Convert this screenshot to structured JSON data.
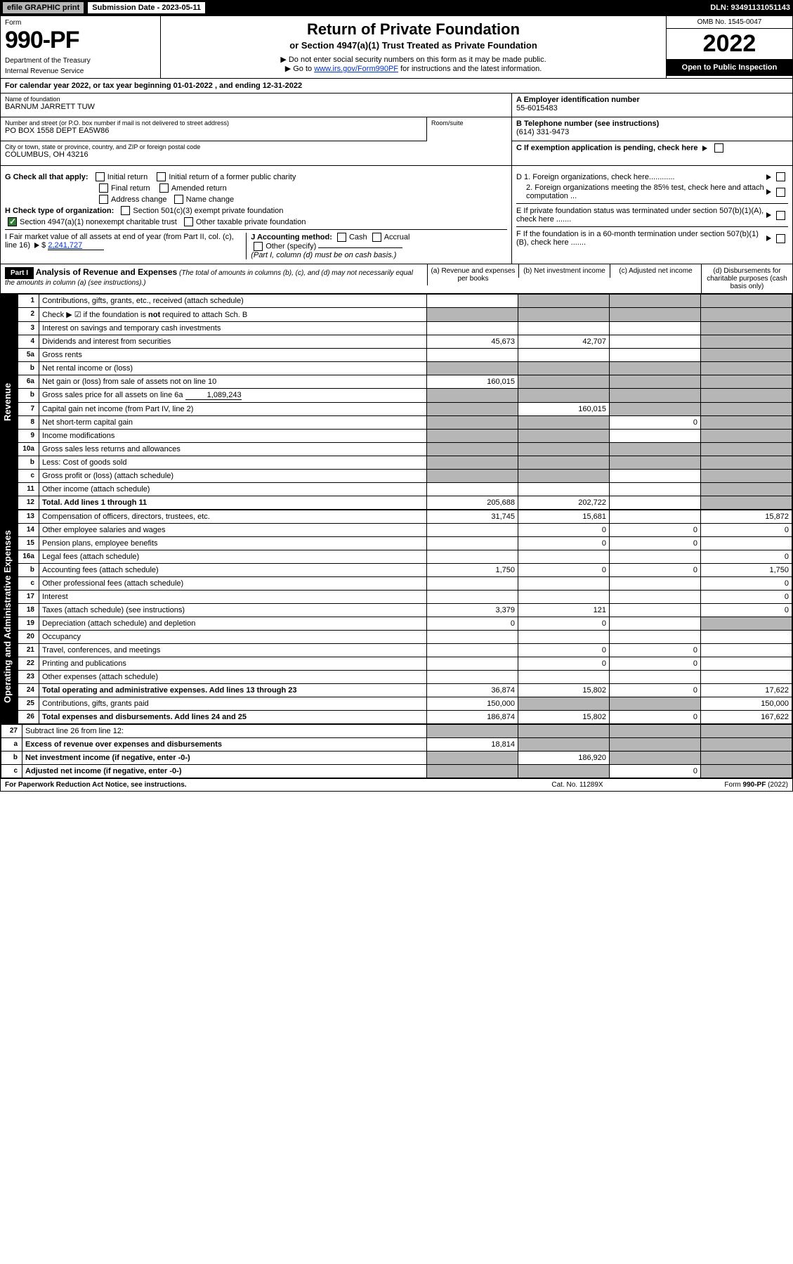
{
  "topbar": {
    "efile": "efile GRAPHIC print",
    "sub_label": "Submission Date - 2023-05-11",
    "dln": "DLN: 93491131051143"
  },
  "header": {
    "form_word": "Form",
    "form_num": "990-PF",
    "dept1": "Department of the Treasury",
    "dept2": "Internal Revenue Service",
    "title": "Return of Private Foundation",
    "subtitle": "or Section 4947(a)(1) Trust Treated as Private Foundation",
    "instr1": "▶ Do not enter social security numbers on this form as it may be made public.",
    "instr2_pre": "▶ Go to ",
    "instr2_link": "www.irs.gov/Form990PF",
    "instr2_post": " for instructions and the latest information.",
    "omb": "OMB No. 1545-0047",
    "year": "2022",
    "open": "Open to Public Inspection"
  },
  "cal_year": "For calendar year 2022, or tax year beginning 01-01-2022            , and ending 12-31-2022",
  "info": {
    "name_lbl": "Name of foundation",
    "name": "BARNUM JARRETT TUW",
    "addr_lbl": "Number and street (or P.O. box number if mail is not delivered to street address)",
    "addr": "PO BOX 1558 DEPT EA5W86",
    "room_lbl": "Room/suite",
    "city_lbl": "City or town, state or province, country, and ZIP or foreign postal code",
    "city": "COLUMBUS, OH  43216",
    "a_lbl": "A Employer identification number",
    "a_val": "55-6015483",
    "b_lbl": "B Telephone number (see instructions)",
    "b_val": "(614) 331-9473",
    "c_lbl": "C If exemption application is pending, check here"
  },
  "checks": {
    "g_lbl": "G Check all that apply:",
    "g_opts": [
      "Initial return",
      "Initial return of a former public charity",
      "Final return",
      "Amended return",
      "Address change",
      "Name change"
    ],
    "h_lbl": "H Check type of organization:",
    "h_opt1": "Section 501(c)(3) exempt private foundation",
    "h_opt2": "Section 4947(a)(1) nonexempt charitable trust",
    "h_opt3": "Other taxable private foundation",
    "i_lbl": "I Fair market value of all assets at end of year (from Part II, col. (c), line 16)",
    "i_val": "2,241,727",
    "j_lbl": "J Accounting method:",
    "j_opts": [
      "Cash",
      "Accrual"
    ],
    "j_other": "Other (specify)",
    "j_note": "(Part I, column (d) must be on cash basis.)",
    "d1": "D 1. Foreign organizations, check here............",
    "d2": "2. Foreign organizations meeting the 85% test, check here and attach computation ...",
    "e": "E If private foundation status was terminated under section 507(b)(1)(A), check here .......",
    "f": "F If the foundation is in a 60-month termination under section 507(b)(1)(B), check here .......",
    "checked_4947": true
  },
  "part1": {
    "hdr": "Part I",
    "title": "Analysis of Revenue and Expenses",
    "title_note": "(The total of amounts in columns (b), (c), and (d) may not necessarily equal the amounts in column (a) (see instructions).)",
    "cols": [
      "(a) Revenue and expenses per books",
      "(b) Net investment income",
      "(c) Adjusted net income",
      "(d) Disbursements for charitable purposes (cash basis only)"
    ]
  },
  "sides": {
    "rev": "Revenue",
    "exp": "Operating and Administrative Expenses"
  },
  "rows": [
    {
      "n": "1",
      "lbl": "Contributions, gifts, grants, etc., received (attach schedule)",
      "a": "",
      "b": "shade",
      "c": "shade",
      "d": "shade"
    },
    {
      "n": "2",
      "lbl": "Check ▶ ☑ if the foundation is not required to attach Sch. B",
      "a": "shade",
      "b": "shade",
      "c": "shade",
      "d": "shade",
      "bold_not": true
    },
    {
      "n": "3",
      "lbl": "Interest on savings and temporary cash investments",
      "a": "",
      "b": "",
      "c": "",
      "d": "shade"
    },
    {
      "n": "4",
      "lbl": "Dividends and interest from securities",
      "a": "45,673",
      "b": "42,707",
      "c": "",
      "d": "shade"
    },
    {
      "n": "5a",
      "lbl": "Gross rents",
      "a": "",
      "b": "",
      "c": "",
      "d": "shade"
    },
    {
      "n": "b",
      "lbl": "Net rental income or (loss)",
      "a": "shade",
      "b": "shade",
      "c": "shade",
      "d": "shade",
      "inset": true
    },
    {
      "n": "6a",
      "lbl": "Net gain or (loss) from sale of assets not on line 10",
      "a": "160,015",
      "b": "shade",
      "c": "shade",
      "d": "shade"
    },
    {
      "n": "b",
      "lbl": "Gross sales price for all assets on line 6a",
      "a": "shade",
      "b": "shade",
      "c": "shade",
      "d": "shade",
      "inset": true,
      "inline_val": "1,089,243"
    },
    {
      "n": "7",
      "lbl": "Capital gain net income (from Part IV, line 2)",
      "a": "shade",
      "b": "160,015",
      "c": "shade",
      "d": "shade"
    },
    {
      "n": "8",
      "lbl": "Net short-term capital gain",
      "a": "shade",
      "b": "shade",
      "c": "0",
      "d": "shade"
    },
    {
      "n": "9",
      "lbl": "Income modifications",
      "a": "shade",
      "b": "shade",
      "c": "",
      "d": "shade"
    },
    {
      "n": "10a",
      "lbl": "Gross sales less returns and allowances",
      "a": "shade",
      "b": "shade",
      "c": "shade",
      "d": "shade",
      "inset": true
    },
    {
      "n": "b",
      "lbl": "Less: Cost of goods sold",
      "a": "shade",
      "b": "shade",
      "c": "shade",
      "d": "shade",
      "inset": true
    },
    {
      "n": "c",
      "lbl": "Gross profit or (loss) (attach schedule)",
      "a": "shade",
      "b": "shade",
      "c": "",
      "d": "shade"
    },
    {
      "n": "11",
      "lbl": "Other income (attach schedule)",
      "a": "",
      "b": "",
      "c": "",
      "d": "shade"
    },
    {
      "n": "12",
      "lbl": "Total. Add lines 1 through 11",
      "a": "205,688",
      "b": "202,722",
      "c": "",
      "d": "shade",
      "bold": true
    }
  ],
  "exp_rows": [
    {
      "n": "13",
      "lbl": "Compensation of officers, directors, trustees, etc.",
      "a": "31,745",
      "b": "15,681",
      "c": "",
      "d": "15,872"
    },
    {
      "n": "14",
      "lbl": "Other employee salaries and wages",
      "a": "",
      "b": "0",
      "c": "0",
      "d": "0"
    },
    {
      "n": "15",
      "lbl": "Pension plans, employee benefits",
      "a": "",
      "b": "0",
      "c": "0",
      "d": ""
    },
    {
      "n": "16a",
      "lbl": "Legal fees (attach schedule)",
      "a": "",
      "b": "",
      "c": "",
      "d": "0"
    },
    {
      "n": "b",
      "lbl": "Accounting fees (attach schedule)",
      "a": "1,750",
      "b": "0",
      "c": "0",
      "d": "1,750"
    },
    {
      "n": "c",
      "lbl": "Other professional fees (attach schedule)",
      "a": "",
      "b": "",
      "c": "",
      "d": "0"
    },
    {
      "n": "17",
      "lbl": "Interest",
      "a": "",
      "b": "",
      "c": "",
      "d": "0"
    },
    {
      "n": "18",
      "lbl": "Taxes (attach schedule) (see instructions)",
      "a": "3,379",
      "b": "121",
      "c": "",
      "d": "0"
    },
    {
      "n": "19",
      "lbl": "Depreciation (attach schedule) and depletion",
      "a": "0",
      "b": "0",
      "c": "",
      "d": "shade"
    },
    {
      "n": "20",
      "lbl": "Occupancy",
      "a": "",
      "b": "",
      "c": "",
      "d": ""
    },
    {
      "n": "21",
      "lbl": "Travel, conferences, and meetings",
      "a": "",
      "b": "0",
      "c": "0",
      "d": ""
    },
    {
      "n": "22",
      "lbl": "Printing and publications",
      "a": "",
      "b": "0",
      "c": "0",
      "d": ""
    },
    {
      "n": "23",
      "lbl": "Other expenses (attach schedule)",
      "a": "",
      "b": "",
      "c": "",
      "d": ""
    },
    {
      "n": "24",
      "lbl": "Total operating and administrative expenses. Add lines 13 through 23",
      "a": "36,874",
      "b": "15,802",
      "c": "0",
      "d": "17,622",
      "bold": true
    },
    {
      "n": "25",
      "lbl": "Contributions, gifts, grants paid",
      "a": "150,000",
      "b": "shade",
      "c": "shade",
      "d": "150,000"
    },
    {
      "n": "26",
      "lbl": "Total expenses and disbursements. Add lines 24 and 25",
      "a": "186,874",
      "b": "15,802",
      "c": "0",
      "d": "167,622",
      "bold": true
    }
  ],
  "bot_rows": [
    {
      "n": "27",
      "lbl": "Subtract line 26 from line 12:",
      "a": "shade",
      "b": "shade",
      "c": "shade",
      "d": "shade"
    },
    {
      "n": "a",
      "lbl": "Excess of revenue over expenses and disbursements",
      "a": "18,814",
      "b": "shade",
      "c": "shade",
      "d": "shade",
      "bold": true
    },
    {
      "n": "b",
      "lbl": "Net investment income (if negative, enter -0-)",
      "a": "shade",
      "b": "186,920",
      "c": "shade",
      "d": "shade",
      "bold": true
    },
    {
      "n": "c",
      "lbl": "Adjusted net income (if negative, enter -0-)",
      "a": "shade",
      "b": "shade",
      "c": "0",
      "d": "shade",
      "bold": true
    }
  ],
  "footer": {
    "left": "For Paperwork Reduction Act Notice, see instructions.",
    "mid": "Cat. No. 11289X",
    "right": "Form 990-PF (2022)"
  },
  "colors": {
    "shade": "#b6b6b6",
    "link": "#0033cc",
    "check_green": "#2e7d32"
  }
}
